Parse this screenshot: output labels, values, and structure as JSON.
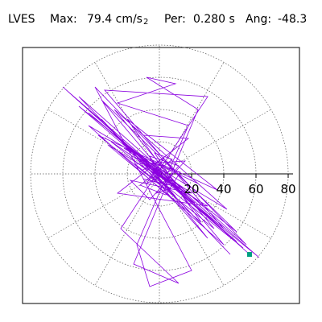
{
  "header": {
    "station": "LVES",
    "max_label": "Max:",
    "max_value": "79.4 cm/s",
    "max_exp": "2",
    "per_label": "Per:",
    "per_value": "0.280 s",
    "ang_label": "Ang:",
    "ang_value": "-48.3"
  },
  "chart_data": {
    "type": "polar-orbit",
    "max_amplitude": 79.4,
    "unit": "cm/s2",
    "period_s": 0.28,
    "angle_deg": -48.3,
    "radial_range": [
      0,
      80
    ],
    "radial_ticks": [
      20,
      40,
      60,
      80
    ],
    "radial_tick_labels": [
      "20",
      "40",
      "60",
      "80"
    ],
    "angular_grid_step_deg": 30,
    "grid": true,
    "trace_color": "#8b00e0",
    "marker_color": "#00a082",
    "marker_point": [
      56,
      -50
    ],
    "trace_points": [
      [
        0,
        0
      ],
      [
        6,
        -4
      ],
      [
        -4,
        7
      ],
      [
        9,
        3
      ],
      [
        -8,
        -6
      ],
      [
        3,
        10
      ],
      [
        -11,
        2
      ],
      [
        7,
        -9
      ],
      [
        -2,
        -12
      ],
      [
        12,
        5
      ],
      [
        -6,
        11
      ],
      [
        5,
        -7
      ],
      [
        -10,
        -3
      ],
      [
        11,
        -8
      ],
      [
        -3,
        13
      ],
      [
        8,
        9
      ],
      [
        -12,
        -7
      ],
      [
        4,
        -13
      ],
      [
        13,
        1
      ],
      [
        -9,
        8
      ],
      [
        2,
        -5
      ],
      [
        -7,
        3
      ],
      [
        14,
        -10
      ],
      [
        -13,
        12
      ],
      [
        10,
        -14
      ],
      [
        -15,
        6
      ],
      [
        16,
        8
      ],
      [
        -6,
        -16
      ],
      [
        -18,
        -4
      ],
      [
        20,
        -12
      ],
      [
        -22,
        16
      ],
      [
        24,
        -6
      ],
      [
        -10,
        24
      ],
      [
        18,
        22
      ],
      [
        -26,
        -12
      ],
      [
        30,
        -20
      ],
      [
        -32,
        18
      ],
      [
        26,
        -30
      ],
      [
        -20,
        34
      ],
      [
        36,
        -10
      ],
      [
        -38,
        24
      ],
      [
        34,
        -34
      ],
      [
        -28,
        40
      ],
      [
        42,
        -22
      ],
      [
        -44,
        30
      ],
      [
        40,
        -44
      ],
      [
        -36,
        46
      ],
      [
        48,
        -36
      ],
      [
        -50,
        42
      ],
      [
        52,
        -46
      ],
      [
        -30,
        20
      ],
      [
        20,
        -14
      ],
      [
        -12,
        8
      ],
      [
        6,
        -4
      ],
      [
        -4,
        2
      ],
      [
        30,
        -40
      ],
      [
        -36,
        34
      ],
      [
        44,
        -50
      ],
      [
        -50,
        48
      ],
      [
        54,
        -44
      ],
      [
        -40,
        54
      ],
      [
        20,
        -60
      ],
      [
        -6,
        -70
      ],
      [
        -14,
        -44
      ],
      [
        18,
        30
      ],
      [
        -26,
        44
      ],
      [
        10,
        56
      ],
      [
        -8,
        60
      ],
      [
        24,
        40
      ],
      [
        -16,
        -56
      ],
      [
        12,
        -68
      ],
      [
        -24,
        -34
      ],
      [
        30,
        48
      ],
      [
        -34,
        52
      ],
      [
        40,
        -34
      ],
      [
        -44,
        38
      ],
      [
        48,
        -42
      ],
      [
        -30,
        26
      ],
      [
        22,
        -18
      ],
      [
        -14,
        10
      ],
      [
        62,
        -52
      ],
      [
        -60,
        54
      ],
      [
        56,
        -50
      ]
    ]
  }
}
